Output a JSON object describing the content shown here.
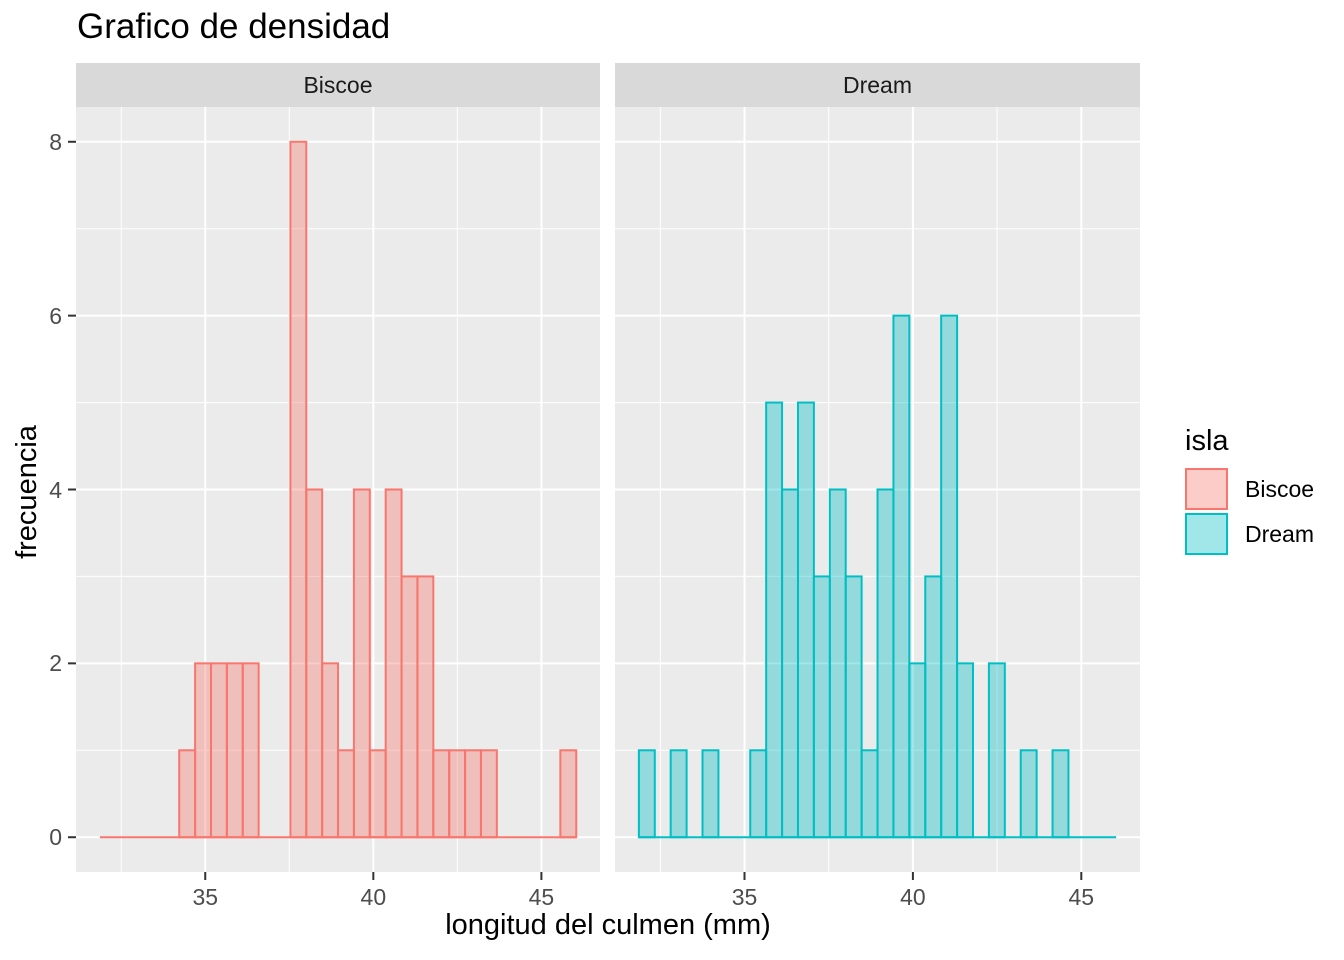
{
  "title": "Grafico de densidad",
  "facets": [
    "Biscoe",
    "Dream"
  ],
  "axes": {
    "x_title": "longitud del culmen (mm)",
    "y_title": "frecuencia",
    "x_ticks": [
      35,
      40,
      45
    ],
    "y_ticks": [
      0,
      2,
      4,
      6,
      8
    ]
  },
  "legend": {
    "title": "isla",
    "entries": [
      {
        "label": "Biscoe",
        "color": "#F8766D"
      },
      {
        "label": "Dream",
        "color": "#00BFC4"
      }
    ]
  },
  "colors": {
    "panel_bg": "#EBEBEB",
    "strip_bg": "#D9D9D9",
    "gridline": "#FFFFFF",
    "tick_mark": "#333333",
    "tick_text": "#4D4D4D",
    "biscoe_stroke": "#F8766D",
    "dream_stroke": "#00BFC4",
    "fill_alpha": 0.37
  },
  "chart_data": {
    "type": "bar",
    "subtype": "faceted-histogram",
    "title": "Grafico de densidad",
    "xlabel": "longitud del culmen (mm)",
    "ylabel": "frecuencia",
    "facet_variable": "isla",
    "legend_position": "right",
    "grid": "on",
    "bins": 30,
    "bin_start": 31.8638,
    "bin_width": 0.47241,
    "x_domain": [
      31.155,
      46.743
    ],
    "y_domain": [
      -0.4,
      8.4
    ],
    "x_minor_ticks": [
      32.5,
      37.5,
      42.5
    ],
    "y_minor_ticks": [
      1,
      3,
      5,
      7
    ],
    "x_major_ticks": [
      35,
      40,
      45
    ],
    "y_major_ticks": [
      0,
      2,
      4,
      6,
      8
    ],
    "data_range": [
      32.1,
      45.8
    ],
    "series": [
      {
        "name": "Biscoe",
        "n": 44,
        "counts": [
          0,
          0,
          0,
          0,
          0,
          1,
          2,
          2,
          2,
          2,
          0,
          0,
          8,
          4,
          2,
          1,
          4,
          1,
          4,
          3,
          3,
          1,
          1,
          1,
          1,
          0,
          0,
          0,
          0,
          1
        ]
      },
      {
        "name": "Dream",
        "n": 56,
        "counts": [
          1,
          0,
          1,
          0,
          1,
          0,
          0,
          1,
          5,
          4,
          5,
          3,
          4,
          3,
          1,
          4,
          6,
          2,
          3,
          6,
          2,
          0,
          2,
          0,
          1,
          0,
          1,
          0,
          0,
          0
        ]
      }
    ]
  }
}
